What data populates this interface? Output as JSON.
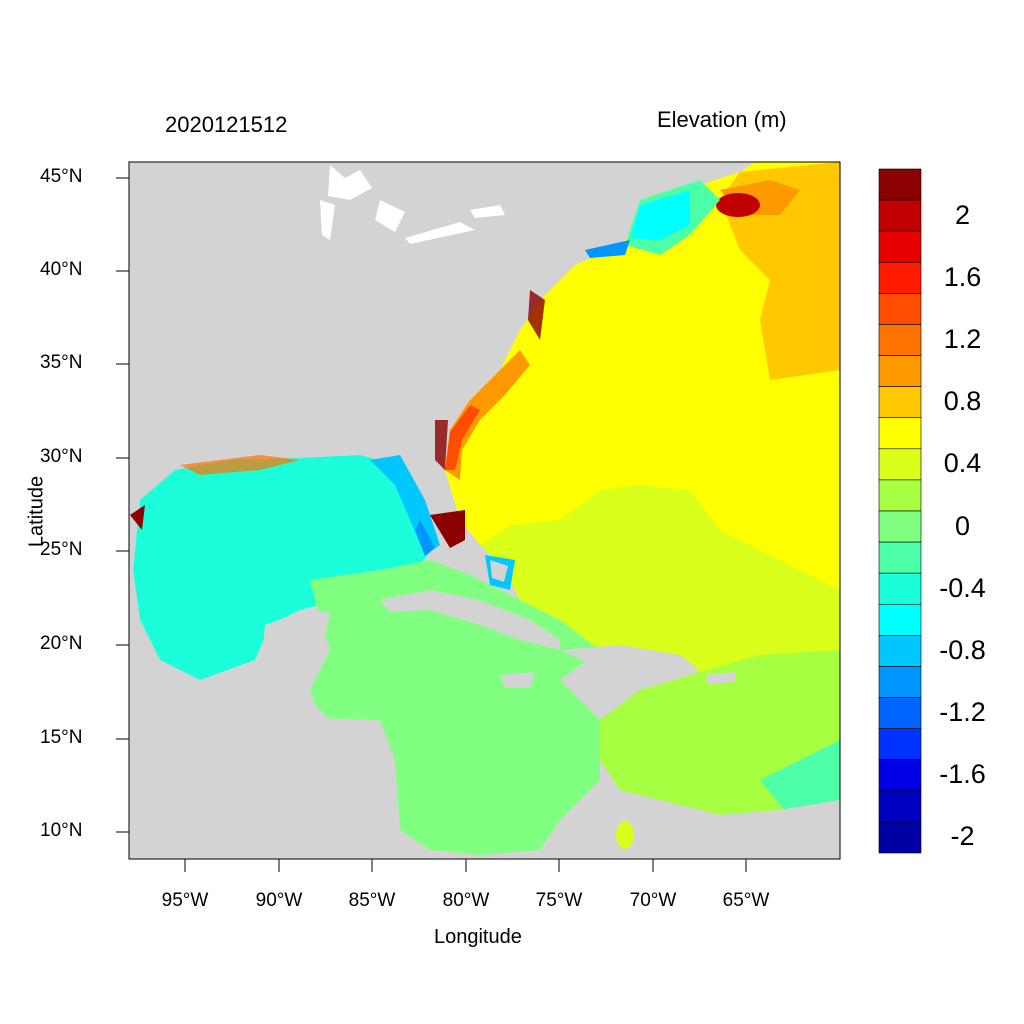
{
  "header": {
    "date": "2020121512",
    "variable": "Elevation (m)"
  },
  "axes": {
    "xlabel": "Longitude",
    "ylabel": "Latitude",
    "y_ticks": [
      "45°N",
      "40°N",
      "35°N",
      "30°N",
      "25°N",
      "20°N",
      "15°N",
      "10°N"
    ],
    "x_ticks": [
      "95°W",
      "90°W",
      "85°W",
      "80°W",
      "75°W",
      "70°W",
      "65°W"
    ]
  },
  "colorbar": {
    "labels": [
      "2",
      "1.6",
      "1.2",
      "0.8",
      "0.4",
      "0",
      "-0.4",
      "-0.8",
      "-1.2",
      "-1.6",
      "-2"
    ],
    "colors": [
      "#8b0000",
      "#c00000",
      "#e60000",
      "#ff1a00",
      "#ff4d00",
      "#ff7300",
      "#ff9900",
      "#ffc800",
      "#ffff00",
      "#d9ff1a",
      "#a6ff40",
      "#80ff80",
      "#4dffa6",
      "#1affd9",
      "#00ffff",
      "#00c8ff",
      "#0096ff",
      "#0064ff",
      "#0032ff",
      "#0000e6",
      "#0000c0",
      "#0000a0"
    ]
  },
  "map": {
    "land_color": "#d3d3d3",
    "gulf_color": "#1affd9",
    "atlantic_color": "#ffff00",
    "caribbean_color": "#80ff80"
  }
}
